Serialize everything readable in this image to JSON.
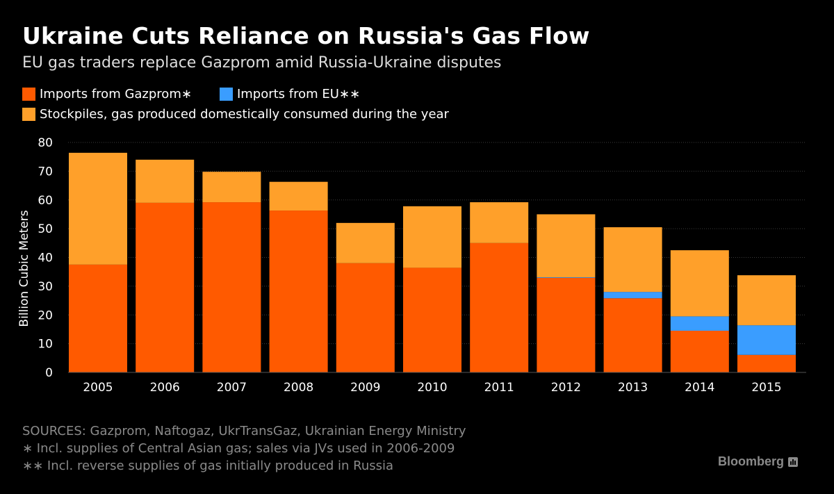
{
  "title": "Ukraine Cuts Reliance on Russia's Gas Flow",
  "subtitle": "EU gas traders replace Gazprom amid Russia-Ukraine disputes",
  "colors": {
    "gazprom": "#ff5a00",
    "eu": "#3a9dff",
    "stockpiles": "#ffa02a",
    "grid": "#3c3c3c",
    "text_muted": "#8a8a8a"
  },
  "legend": [
    {
      "key": "gazprom",
      "label": "Imports from Gazprom∗"
    },
    {
      "key": "eu",
      "label": "Imports from EU∗∗"
    },
    {
      "key": "stockpiles",
      "label": "Stockpiles, gas produced domestically consumed during the year"
    }
  ],
  "chart_data": {
    "type": "bar",
    "stacked": true,
    "categories": [
      "2005",
      "2006",
      "2007",
      "2008",
      "2009",
      "2010",
      "2011",
      "2012",
      "2013",
      "2014",
      "2015"
    ],
    "series": [
      {
        "key": "gazprom",
        "name": "Imports from Gazprom∗",
        "values": [
          37.5,
          59,
          59.2,
          56.3,
          38,
          36.4,
          45,
          32.9,
          25.8,
          14.5,
          6.1
        ]
      },
      {
        "key": "eu",
        "name": "Imports from EU∗∗",
        "values": [
          0,
          0,
          0,
          0,
          0,
          0,
          0,
          0.2,
          2.2,
          5,
          10.3
        ]
      },
      {
        "key": "stockpiles",
        "name": "Stockpiles, gas produced domestically consumed during the year",
        "values": [
          38.9,
          15,
          10.6,
          10,
          14,
          21.4,
          14.2,
          21.9,
          22.5,
          23,
          17.4
        ]
      }
    ],
    "ylabel": "Billion Cubic Meters",
    "yticks": [
      "0",
      "10",
      "20",
      "30",
      "40",
      "50",
      "60",
      "70",
      "80"
    ],
    "ylim": [
      0,
      80
    ]
  },
  "footer": {
    "sources": "SOURCES: Gazprom, Naftogaz, UkrTransGaz, Ukrainian Energy Ministry",
    "note1": "∗ Incl. supplies of Central Asian gas; sales via JVs used in 2006-2009",
    "note2": "∗∗ Incl. reverse supplies of gas initially produced in Russia"
  },
  "brand": "Bloomberg"
}
